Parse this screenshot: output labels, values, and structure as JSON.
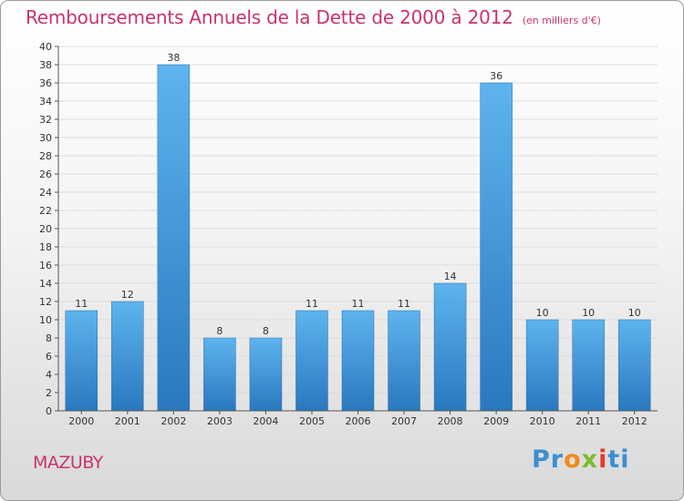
{
  "chart_data": {
    "type": "bar",
    "title": "Remboursements Annuels de la Dette de 2000 à 2012",
    "subtitle": "(en milliers d'€)",
    "categories": [
      "2000",
      "2001",
      "2002",
      "2003",
      "2004",
      "2005",
      "2006",
      "2007",
      "2008",
      "2009",
      "2010",
      "2011",
      "2012"
    ],
    "values": [
      11,
      12,
      38,
      8,
      8,
      11,
      11,
      11,
      14,
      36,
      10,
      10,
      10
    ],
    "ylim": [
      0,
      40
    ],
    "ytick_step": 2,
    "grid": true,
    "legend": "none",
    "bar_color": "#3a8fd6"
  },
  "footer": {
    "commune": "MAZUBY",
    "logo_text": "Proxiti"
  }
}
